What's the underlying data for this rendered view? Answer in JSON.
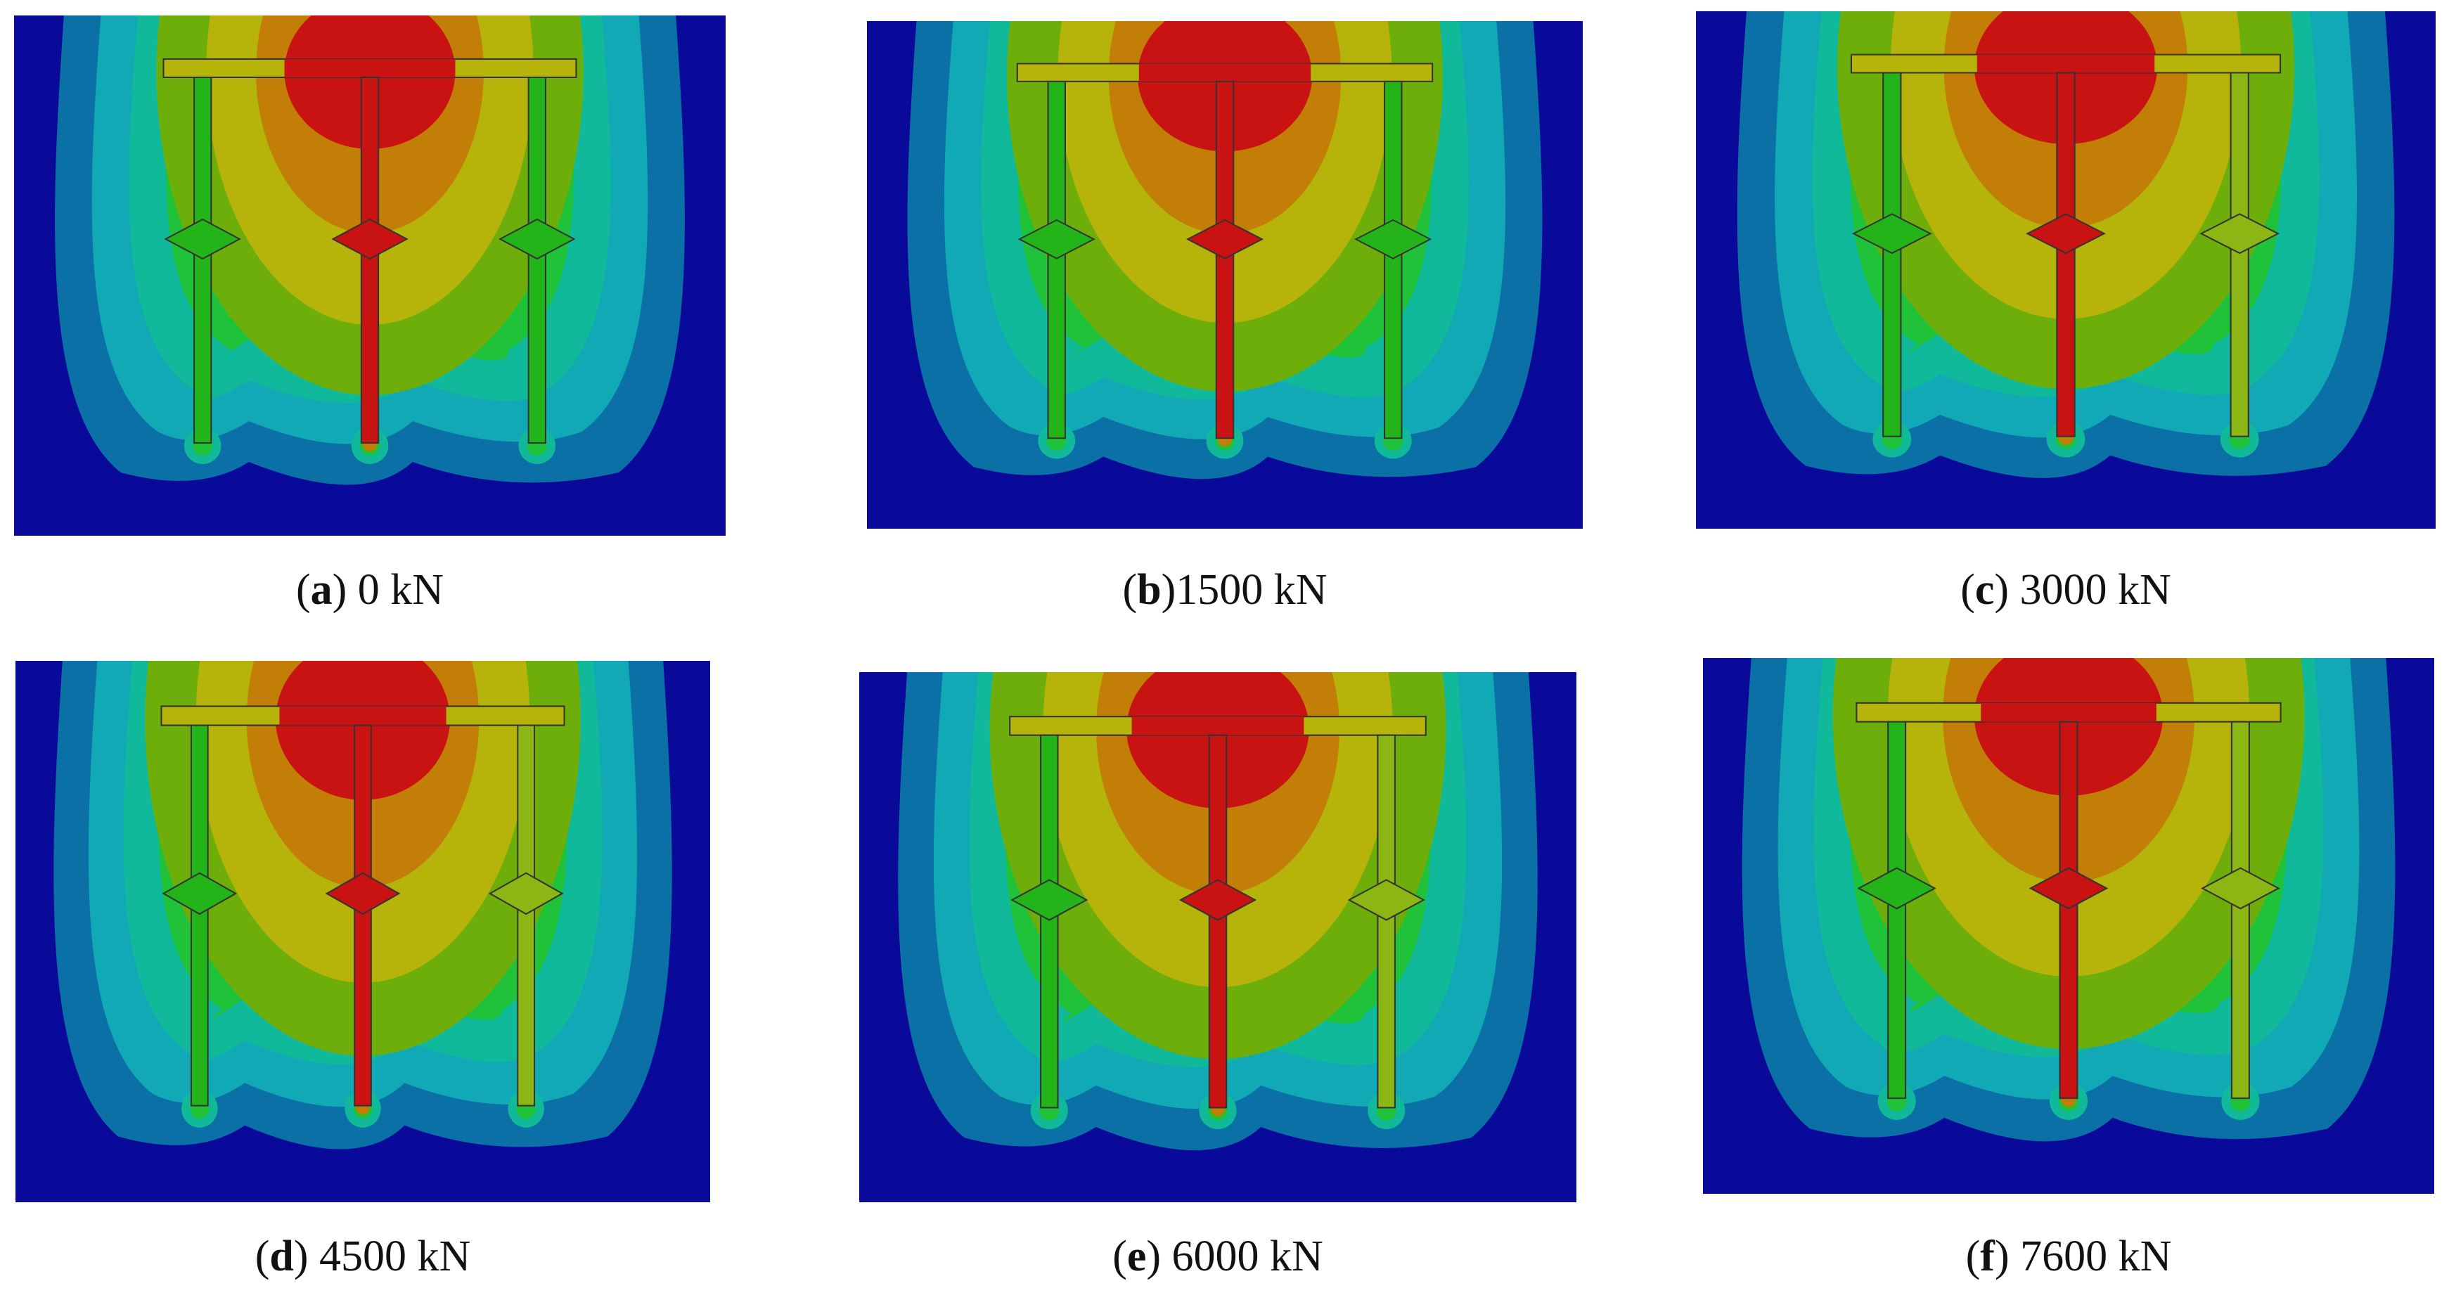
{
  "panels": [
    {
      "letter": "a",
      "load": "0 kN",
      "sep": " "
    },
    {
      "letter": "b",
      "load": "1500 kN",
      "sep": ""
    },
    {
      "letter": "c",
      "load": "3000 kN",
      "sep": " "
    },
    {
      "letter": "d",
      "load": "4500 kN",
      "sep": " "
    },
    {
      "letter": "e",
      "load": "6000 kN",
      "sep": " "
    },
    {
      "letter": "f",
      "load": "7600 kN",
      "sep": " "
    }
  ],
  "colors": {
    "background": "#0a0a9a",
    "contour_bands": [
      "#0a70a6",
      "#12a9b6",
      "#10b99a",
      "#20c23a",
      "#6eae0a",
      "#b6b40a",
      "#c27e06",
      "#c91212"
    ],
    "pile_side_low": "#22b418",
    "pile_side_high": "#8cb614",
    "pile_center": "#c91212",
    "outline": "#333333"
  }
}
